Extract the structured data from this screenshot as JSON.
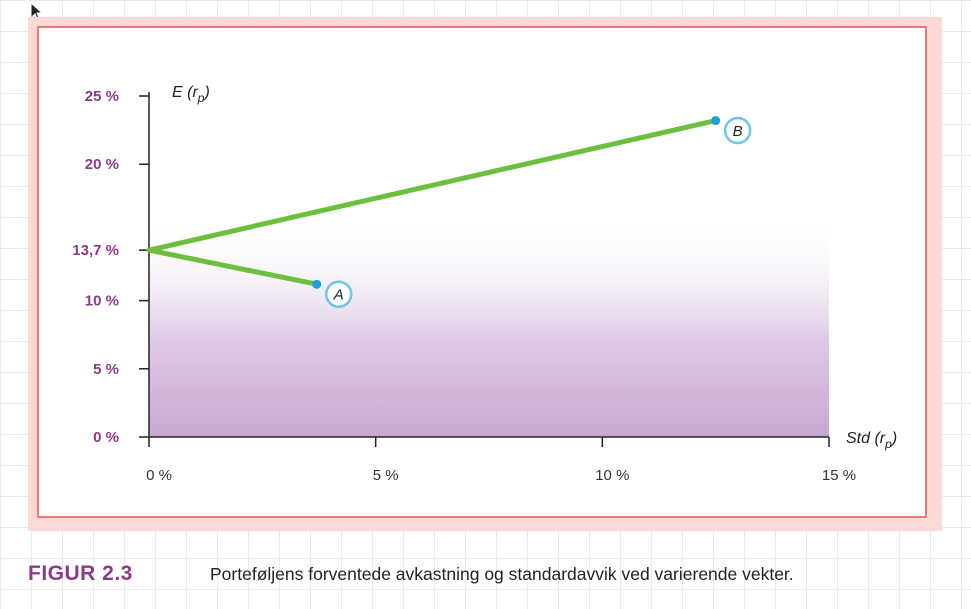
{
  "chart_data": {
    "type": "line",
    "xlabel": "Std (r_p)",
    "ylabel": "E (r_p)",
    "xlim": [
      0,
      15
    ],
    "ylim": [
      0,
      25
    ],
    "x_ticks": [
      {
        "value": 0,
        "label": "0 %"
      },
      {
        "value": 5,
        "label": "5 %"
      },
      {
        "value": 10,
        "label": "10 %"
      },
      {
        "value": 15,
        "label": "15 %"
      }
    ],
    "y_ticks": [
      {
        "value": 0,
        "label": "0 %"
      },
      {
        "value": 5,
        "label": "5 %"
      },
      {
        "value": 10,
        "label": "10 %"
      },
      {
        "value": 13.7,
        "label": "13,7 %"
      },
      {
        "value": 20,
        "label": "20 %"
      },
      {
        "value": 25,
        "label": "25 %"
      }
    ],
    "series": [
      {
        "points": [
          {
            "x": 0,
            "y": 13.7
          },
          {
            "x": 3.7,
            "y": 11.2
          }
        ]
      },
      {
        "points": [
          {
            "x": 0,
            "y": 13.7
          },
          {
            "x": 12.5,
            "y": 23.2
          }
        ]
      }
    ],
    "labeled_points": [
      {
        "label": "A",
        "x": 3.7,
        "y": 11.2
      },
      {
        "label": "B",
        "x": 12.5,
        "y": 23.2
      }
    ],
    "shaded_region": {
      "x": [
        0,
        15
      ],
      "y": [
        0,
        16
      ]
    },
    "colors": {
      "line": "#6cbf3f",
      "point": "#1ea0d6",
      "label_circle": "#6cc6e8",
      "tick_label": "#8b3a8b",
      "shade": "#c8a9d2"
    },
    "grid": false
  },
  "caption": {
    "label": "FIGUR 2.3",
    "text": "Porteføljens forventede avkastning og standardavvik ved varierende vekter."
  }
}
